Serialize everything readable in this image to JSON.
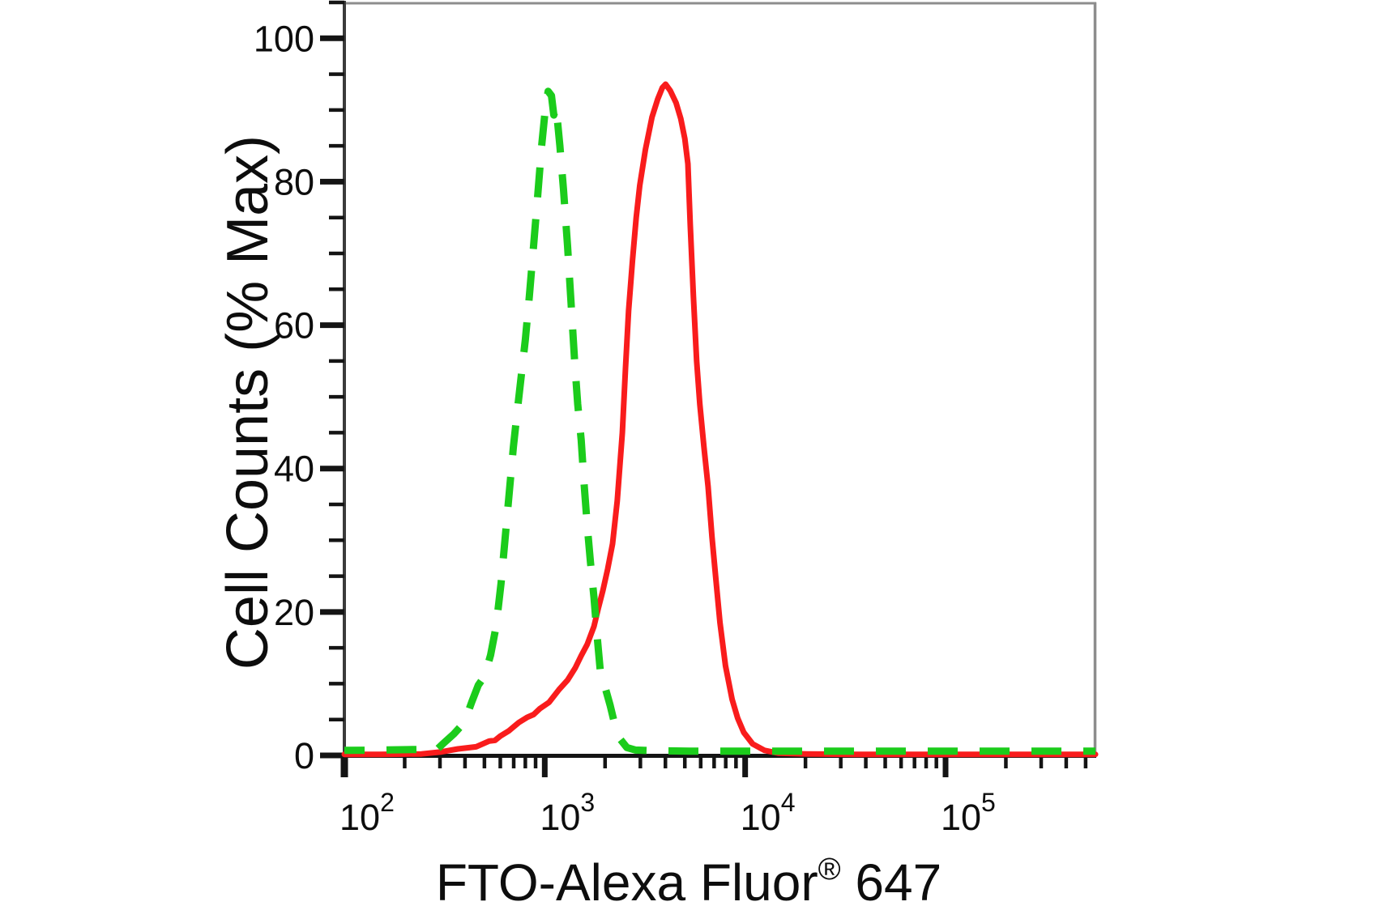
{
  "figure": {
    "background": "#ffffff",
    "y_axis_title": "Cell Counts (% Max)",
    "x_axis_title": {
      "prefix": "FTO-Alexa Fluor",
      "registered_mark": "®",
      "suffix": " 647"
    }
  },
  "axes": {
    "x": {
      "scale": "log",
      "min": 100,
      "max": 565000,
      "major_ticks": [
        100,
        1000,
        10000,
        100000
      ],
      "tick_labels": [
        {
          "base": "10",
          "exponent": "2"
        },
        {
          "base": "10",
          "exponent": "3"
        },
        {
          "base": "10",
          "exponent": "4"
        },
        {
          "base": "10",
          "exponent": "5"
        }
      ],
      "minor_tick_multiples": [
        2,
        3,
        4,
        5,
        6,
        7,
        8,
        9
      ]
    },
    "y": {
      "min": 0,
      "max": 105,
      "major_ticks": [
        0,
        20,
        40,
        60,
        80,
        100
      ],
      "tick_labels": [
        "0",
        "20",
        "40",
        "60",
        "80",
        "100"
      ],
      "minor_step": 5
    }
  },
  "chart_data": {
    "type": "line",
    "title": "",
    "xlabel": "FTO-Alexa Fluor® 647",
    "ylabel": "Cell Counts (% Max)",
    "x_scale": "log",
    "xlim": [
      100,
      565000
    ],
    "ylim": [
      0,
      105
    ],
    "grid": false,
    "legend_position": "none",
    "colors": {
      "red_solid": "#f91c1c",
      "green_dashed": "#1bcc1b",
      "axis": "#141414",
      "frame_gray": "#8d8d8d"
    },
    "series": [
      {
        "name": "red solid curve",
        "color": "#f91c1c",
        "line_style": "solid",
        "peak_x": 4000,
        "peak_y": 93.6,
        "points": [
          [
            100,
            0.15
          ],
          [
            150,
            0.15
          ],
          [
            243,
            0.2
          ],
          [
            306,
            0.5
          ],
          [
            369,
            0.9
          ],
          [
            454,
            1.2
          ],
          [
            528,
            2.0
          ],
          [
            565,
            2.1
          ],
          [
            600,
            2.7
          ],
          [
            660,
            3.4
          ],
          [
            743,
            4.6
          ],
          [
            815,
            5.3
          ],
          [
            880,
            5.7
          ],
          [
            944,
            6.5
          ],
          [
            1050,
            7.4
          ],
          [
            1180,
            9.2
          ],
          [
            1300,
            10.5
          ],
          [
            1420,
            12.2
          ],
          [
            1520,
            13.9
          ],
          [
            1630,
            15.5
          ],
          [
            1760,
            18
          ],
          [
            1850,
            20.5
          ],
          [
            1950,
            23
          ],
          [
            2060,
            26
          ],
          [
            2180,
            29.5
          ],
          [
            2300,
            35.5
          ],
          [
            2440,
            45
          ],
          [
            2530,
            54
          ],
          [
            2620,
            62
          ],
          [
            2740,
            69
          ],
          [
            2860,
            75
          ],
          [
            2980,
            79.5
          ],
          [
            3180,
            84.5
          ],
          [
            3430,
            89
          ],
          [
            3660,
            91.5
          ],
          [
            3860,
            93.1
          ],
          [
            4010,
            93.6
          ],
          [
            4230,
            92.7
          ],
          [
            4520,
            91
          ],
          [
            4770,
            88.8
          ],
          [
            5000,
            86
          ],
          [
            5180,
            82.5
          ],
          [
            5320,
            74
          ],
          [
            5520,
            64
          ],
          [
            5730,
            55
          ],
          [
            5940,
            49
          ],
          [
            6230,
            43
          ],
          [
            6530,
            37.5
          ],
          [
            6830,
            30.5
          ],
          [
            7150,
            24.5
          ],
          [
            7490,
            18.5
          ],
          [
            7980,
            12.5
          ],
          [
            8610,
            7.8
          ],
          [
            9170,
            5.2
          ],
          [
            9850,
            3.2
          ],
          [
            10900,
            1.6
          ],
          [
            12500,
            0.7
          ],
          [
            14700,
            0.3
          ],
          [
            20400,
            0.2
          ],
          [
            35000,
            0.15
          ],
          [
            54500,
            0.15
          ],
          [
            110000,
            0.15
          ],
          [
            221000,
            0.15
          ],
          [
            400000,
            0.15
          ],
          [
            560000,
            0.15
          ]
        ]
      },
      {
        "name": "green dashed curve",
        "color": "#1bcc1b",
        "line_style": "dashed",
        "peak_x": 1040,
        "peak_y": 92.6,
        "points": [
          [
            100,
            0.7
          ],
          [
            150,
            0.75
          ],
          [
            205,
            0.8
          ],
          [
            260,
            0.85
          ],
          [
            292,
            0.9
          ],
          [
            310,
            1.6
          ],
          [
            352,
            3
          ],
          [
            397,
            4.6
          ],
          [
            433,
            7.5
          ],
          [
            466,
            9.8
          ],
          [
            500,
            11
          ],
          [
            537,
            14
          ],
          [
            572,
            18
          ],
          [
            605,
            24
          ],
          [
            633,
            30
          ],
          [
            662,
            36
          ],
          [
            697,
            43
          ],
          [
            729,
            48
          ],
          [
            764,
            53
          ],
          [
            800,
            58
          ],
          [
            838,
            64
          ],
          [
            879,
            71
          ],
          [
            922,
            78
          ],
          [
            965,
            85
          ],
          [
            1005,
            90
          ],
          [
            1040,
            92.6
          ],
          [
            1080,
            92
          ],
          [
            1110,
            89.3
          ],
          [
            1140,
            90.4
          ],
          [
            1190,
            85
          ],
          [
            1240,
            79
          ],
          [
            1300,
            71
          ],
          [
            1360,
            62
          ],
          [
            1410,
            55
          ],
          [
            1460,
            49
          ],
          [
            1520,
            44
          ],
          [
            1570,
            38
          ],
          [
            1630,
            32
          ],
          [
            1690,
            27
          ],
          [
            1760,
            22
          ],
          [
            1820,
            17
          ],
          [
            1890,
            12
          ],
          [
            2000,
            9.5
          ],
          [
            2120,
            7
          ],
          [
            2240,
            4.2
          ],
          [
            2390,
            2.2
          ],
          [
            2570,
            1.1
          ],
          [
            2840,
            0.75
          ],
          [
            3500,
            0.65
          ],
          [
            5300,
            0.6
          ],
          [
            8000,
            0.6
          ],
          [
            13400,
            0.6
          ],
          [
            25000,
            0.6
          ],
          [
            54500,
            0.6
          ],
          [
            110000,
            0.6
          ],
          [
            221000,
            0.6
          ],
          [
            400000,
            0.6
          ],
          [
            560000,
            0.6
          ]
        ]
      }
    ]
  }
}
